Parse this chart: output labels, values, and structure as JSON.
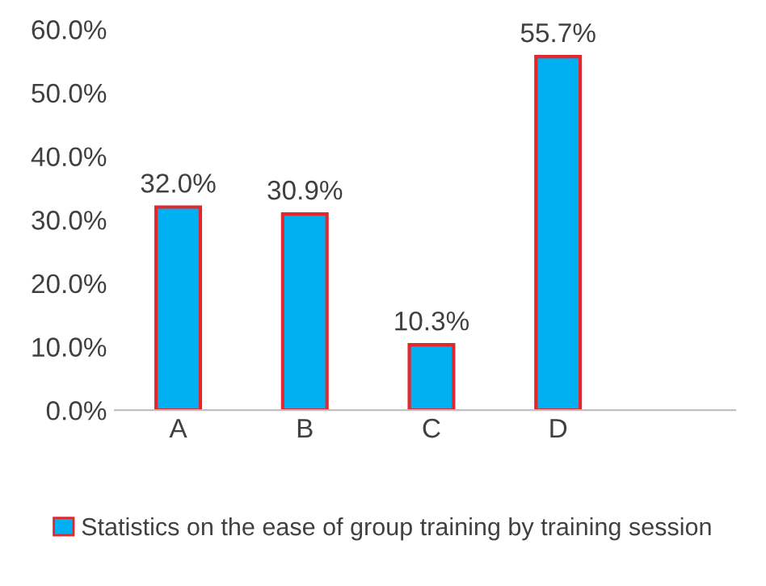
{
  "chart_data": {
    "type": "bar",
    "categories": [
      "A",
      "B",
      "C",
      "D"
    ],
    "series": [
      {
        "name": "Statistics on the ease of group training by training session",
        "color": "#00b0f0",
        "values": [
          32.0,
          30.9,
          10.3,
          55.7
        ],
        "value_labels": [
          "32.0%",
          "30.9%",
          "10.3%",
          "55.7%"
        ]
      }
    ],
    "ylim": [
      0,
      60
    ],
    "yticks": [
      {
        "value": 0,
        "label": "0.0%"
      },
      {
        "value": 10,
        "label": "10.0%"
      },
      {
        "value": 20,
        "label": "20.0%"
      },
      {
        "value": 30,
        "label": "30.0%"
      },
      {
        "value": 40,
        "label": "40.0%"
      },
      {
        "value": 50,
        "label": "50.0%"
      },
      {
        "value": 60,
        "label": "60.0%"
      }
    ],
    "grid": false,
    "legend": "bottom"
  }
}
